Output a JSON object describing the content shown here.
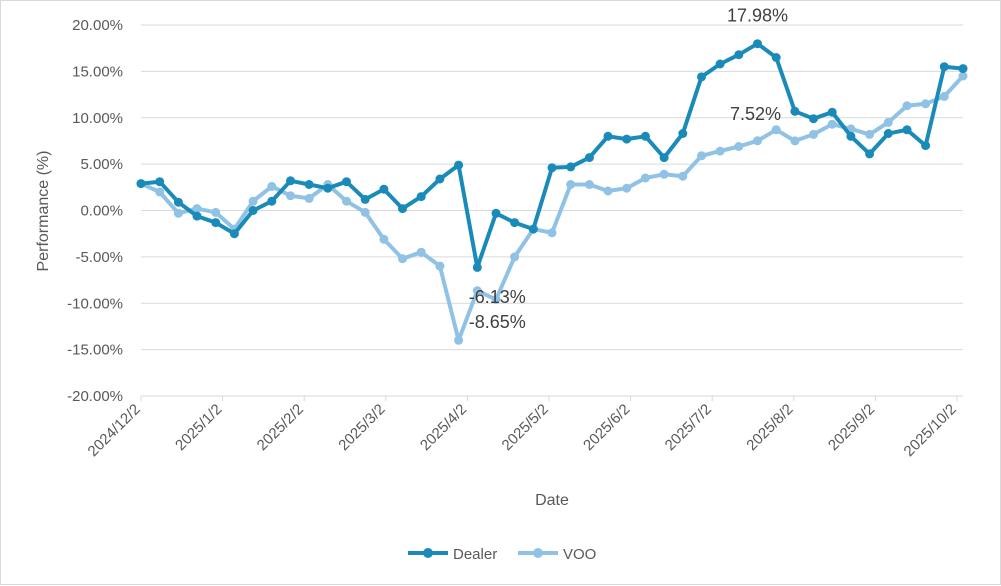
{
  "chart_data": {
    "type": "line",
    "xlabel": "Date",
    "ylabel": "Performance (%)",
    "ylim": [
      -20,
      20
    ],
    "y_ticks": [
      20,
      15,
      10,
      5,
      0,
      -5,
      -10,
      -15,
      -20
    ],
    "y_tick_labels": [
      "20.00%",
      "15.00%",
      "10.00%",
      "5.00%",
      "0.00%",
      "-5.00%",
      "-10.00%",
      "-15.00%",
      "-20.00%"
    ],
    "x_tick_labels": [
      "2024/12/2",
      "2025/1/2",
      "2025/2/2",
      "2025/3/2",
      "2025/4/2",
      "2025/5/2",
      "2025/6/2",
      "2025/7/2",
      "2025/8/2",
      "2025/9/2",
      "2025/10/2"
    ],
    "grid": true,
    "legend_position": "bottom",
    "series": [
      {
        "name": "Dealer",
        "color": "#1a8bb9",
        "values": [
          2.9,
          3.1,
          0.9,
          -0.6,
          -1.3,
          -2.5,
          0.0,
          1.0,
          3.2,
          2.8,
          2.4,
          3.1,
          1.2,
          2.3,
          0.2,
          1.5,
          3.4,
          4.9,
          -6.13,
          -0.3,
          -1.3,
          -2.0,
          4.6,
          4.7,
          5.7,
          8.0,
          7.7,
          8.0,
          5.7,
          8.3,
          14.4,
          15.8,
          16.8,
          17.98,
          16.5,
          10.7,
          9.9,
          10.6,
          8.0,
          6.1,
          8.3,
          8.7,
          7.0,
          15.5,
          15.3
        ],
        "labels": [
          {
            "index": 18,
            "text": "-6.13%"
          },
          {
            "index": 33,
            "text": "17.98%"
          }
        ]
      },
      {
        "name": "VOO",
        "color": "#8fc2e4",
        "values": [
          2.9,
          2.0,
          -0.3,
          0.2,
          -0.2,
          -2.0,
          1.0,
          2.6,
          1.6,
          1.3,
          2.8,
          1.0,
          -0.2,
          -3.1,
          -5.2,
          -4.5,
          -6.0,
          -14.0,
          -8.65,
          -9.6,
          -5.0,
          -2.0,
          -2.4,
          2.8,
          2.8,
          2.1,
          2.4,
          3.5,
          3.9,
          3.7,
          5.9,
          6.4,
          6.9,
          7.52,
          8.7,
          7.5,
          8.2,
          9.3,
          8.8,
          8.2,
          9.5,
          11.3,
          11.5,
          12.3,
          14.5
        ],
        "labels": [
          {
            "index": 18,
            "text": "-8.65%"
          },
          {
            "index": 33,
            "text": "7.52%"
          }
        ]
      }
    ]
  }
}
